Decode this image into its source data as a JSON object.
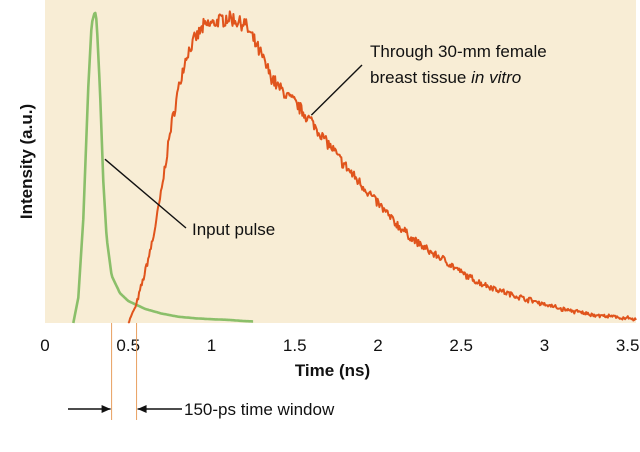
{
  "chart_data": {
    "type": "line",
    "title": "",
    "xlabel": "Time (ns)",
    "ylabel": "Intensity (a.u.)",
    "xlim": [
      0,
      3.55
    ],
    "ylim": [
      0,
      1.0
    ],
    "x_ticks": [
      0,
      0.5,
      1,
      1.5,
      2,
      2.5,
      3,
      3.5
    ],
    "x_tick_labels": [
      "0",
      "0.5",
      "1",
      "1.5",
      "2",
      "2.5",
      "3",
      "3.5"
    ],
    "grid": false,
    "plot_background": "#f8edd5",
    "series": [
      {
        "name": "Input pulse",
        "color": "#8bbf6a",
        "x": [
          0.17,
          0.2,
          0.23,
          0.26,
          0.28,
          0.3,
          0.31,
          0.33,
          0.35,
          0.37,
          0.4,
          0.45,
          0.5,
          0.6,
          0.7,
          0.8,
          0.9,
          1.0,
          1.1,
          1.2,
          1.25
        ],
        "y": [
          0.0,
          0.08,
          0.33,
          0.75,
          0.95,
          0.99,
          0.96,
          0.74,
          0.45,
          0.27,
          0.15,
          0.095,
          0.07,
          0.045,
          0.03,
          0.02,
          0.015,
          0.012,
          0.01,
          0.006,
          0.005
        ]
      },
      {
        "name": "Through 30-mm female breast tissue in vitro",
        "color": "#e0541c",
        "x": [
          0.5,
          0.55,
          0.6,
          0.65,
          0.7,
          0.75,
          0.8,
          0.85,
          0.9,
          0.95,
          1.0,
          1.05,
          1.1,
          1.15,
          1.2,
          1.25,
          1.3,
          1.35,
          1.4,
          1.5,
          1.6,
          1.7,
          1.8,
          1.9,
          2.0,
          2.1,
          2.2,
          2.3,
          2.4,
          2.5,
          2.6,
          2.7,
          2.8,
          2.9,
          3.0,
          3.1,
          3.2,
          3.3,
          3.4,
          3.5,
          3.55
        ],
        "y": [
          0.0,
          0.06,
          0.16,
          0.27,
          0.42,
          0.6,
          0.74,
          0.85,
          0.9,
          0.94,
          0.95,
          0.96,
          0.97,
          0.96,
          0.95,
          0.9,
          0.85,
          0.79,
          0.75,
          0.7,
          0.64,
          0.57,
          0.5,
          0.44,
          0.38,
          0.32,
          0.27,
          0.23,
          0.2,
          0.16,
          0.13,
          0.11,
          0.09,
          0.075,
          0.06,
          0.045,
          0.035,
          0.025,
          0.02,
          0.015,
          0.01
        ]
      }
    ],
    "annotations": {
      "tissue_label_line1": "Through 30-mm female",
      "tissue_label_line2_prefix": "breast tissue ",
      "tissue_label_line2_italic": "in vitro",
      "pulse_label": "Input pulse",
      "window_label": "150-ps time window"
    },
    "time_window_ns": [
      0.4,
      0.55
    ]
  }
}
